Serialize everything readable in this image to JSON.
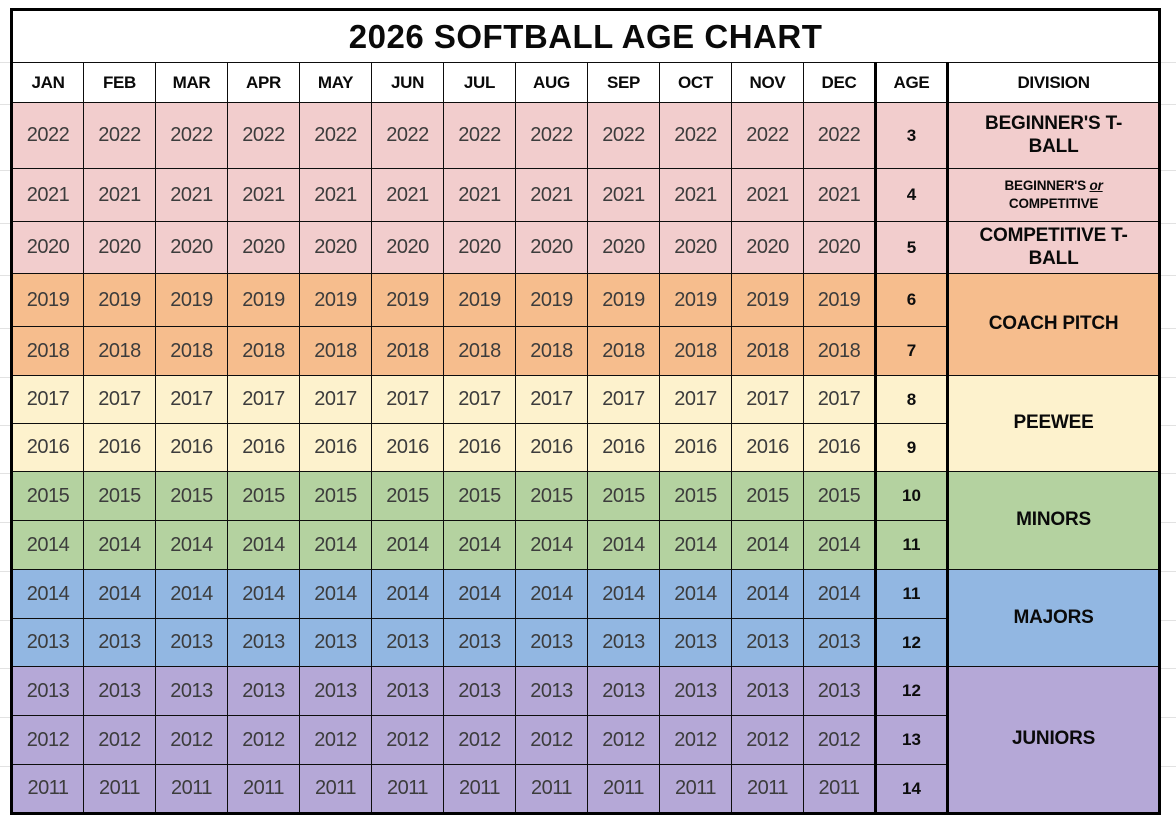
{
  "title": "2026 SOFTBALL AGE CHART",
  "columns": {
    "months": [
      "JAN",
      "FEB",
      "MAR",
      "APR",
      "MAY",
      "JUN",
      "JUL",
      "AUG",
      "SEP",
      "OCT",
      "NOV",
      "DEC"
    ],
    "age": "AGE",
    "division": "DIVISION"
  },
  "colors": {
    "tball_pink": "#f2cdcd",
    "coach_pitch_orange": "#f6bd8d",
    "peewee_cream": "#fdf2cd",
    "minors_green": "#b4d2a0",
    "majors_blue": "#92b7e2",
    "juniors_purple": "#b5a8d7",
    "border": "#000000",
    "year_text": "#3c3c3c"
  },
  "sections": [
    {
      "name": "t-ball",
      "bg": "#f2cdcd",
      "rows": [
        {
          "year": "2022",
          "age": "3",
          "division": {
            "size": "lg",
            "lines": [
              [
                "BEGINNER'S T-"
              ],
              [
                "BALL"
              ]
            ]
          }
        },
        {
          "year": "2021",
          "age": "4",
          "division": {
            "size": "sm",
            "lines": [
              [
                "BEGINNER'S ",
                {
                  "em": "or"
                }
              ],
              [
                "COMPETITIVE"
              ]
            ]
          }
        },
        {
          "year": "2020",
          "age": "5",
          "division": {
            "size": "lg",
            "lines": [
              [
                "COMPETITIVE T-"
              ],
              [
                "BALL"
              ]
            ]
          }
        }
      ]
    },
    {
      "name": "coach-pitch",
      "bg": "#f6bd8d",
      "division": {
        "size": "lg",
        "lines": [
          [
            "COACH PITCH"
          ]
        ]
      },
      "rows": [
        {
          "year": "2019",
          "age": "6"
        },
        {
          "year": "2018",
          "age": "7"
        }
      ]
    },
    {
      "name": "peewee",
      "bg": "#fdf2cd",
      "division": {
        "size": "lg",
        "lines": [
          [
            "PEEWEE"
          ]
        ]
      },
      "rows": [
        {
          "year": "2017",
          "age": "8"
        },
        {
          "year": "2016",
          "age": "9"
        }
      ]
    },
    {
      "name": "minors",
      "bg": "#b4d2a0",
      "division": {
        "size": "lg",
        "lines": [
          [
            "MINORS"
          ]
        ]
      },
      "rows": [
        {
          "year": "2015",
          "age": "10"
        },
        {
          "year": "2014",
          "age": "11"
        }
      ]
    },
    {
      "name": "majors",
      "bg": "#92b7e2",
      "division": {
        "size": "lg",
        "lines": [
          [
            "MAJORS"
          ]
        ]
      },
      "rows": [
        {
          "year": "2014",
          "age": "11"
        },
        {
          "year": "2013",
          "age": "12"
        }
      ]
    },
    {
      "name": "juniors",
      "bg": "#b5a8d7",
      "division": {
        "size": "lg",
        "lines": [
          [
            "JUNIORS"
          ]
        ]
      },
      "rows": [
        {
          "year": "2013",
          "age": "12"
        },
        {
          "year": "2012",
          "age": "13"
        },
        {
          "year": "2011",
          "age": "14"
        }
      ]
    }
  ],
  "chart_data": {
    "type": "table",
    "title": "2026 SOFTBALL AGE CHART",
    "columns": [
      "JAN",
      "FEB",
      "MAR",
      "APR",
      "MAY",
      "JUN",
      "JUL",
      "AUG",
      "SEP",
      "OCT",
      "NOV",
      "DEC",
      "AGE",
      "DIVISION"
    ],
    "rows": [
      {
        "birth_year": 2022,
        "age": 3,
        "division": "BEGINNER'S T-BALL"
      },
      {
        "birth_year": 2021,
        "age": 4,
        "division": "BEGINNER'S or COMPETITIVE"
      },
      {
        "birth_year": 2020,
        "age": 5,
        "division": "COMPETITIVE T-BALL"
      },
      {
        "birth_year": 2019,
        "age": 6,
        "division": "COACH PITCH"
      },
      {
        "birth_year": 2018,
        "age": 7,
        "division": "COACH PITCH"
      },
      {
        "birth_year": 2017,
        "age": 8,
        "division": "PEEWEE"
      },
      {
        "birth_year": 2016,
        "age": 9,
        "division": "PEEWEE"
      },
      {
        "birth_year": 2015,
        "age": 10,
        "division": "MINORS"
      },
      {
        "birth_year": 2014,
        "age": 11,
        "division": "MINORS"
      },
      {
        "birth_year": 2014,
        "age": 11,
        "division": "MAJORS"
      },
      {
        "birth_year": 2013,
        "age": 12,
        "division": "MAJORS"
      },
      {
        "birth_year": 2013,
        "age": 12,
        "division": "JUNIORS"
      },
      {
        "birth_year": 2012,
        "age": 13,
        "division": "JUNIORS"
      },
      {
        "birth_year": 2011,
        "age": 14,
        "division": "JUNIORS"
      }
    ],
    "layout_hint": "Every month column JAN-DEC repeats the row's birth year; AGE column and merged DIVISION cells at right; rows grouped by color-coded division sections."
  }
}
